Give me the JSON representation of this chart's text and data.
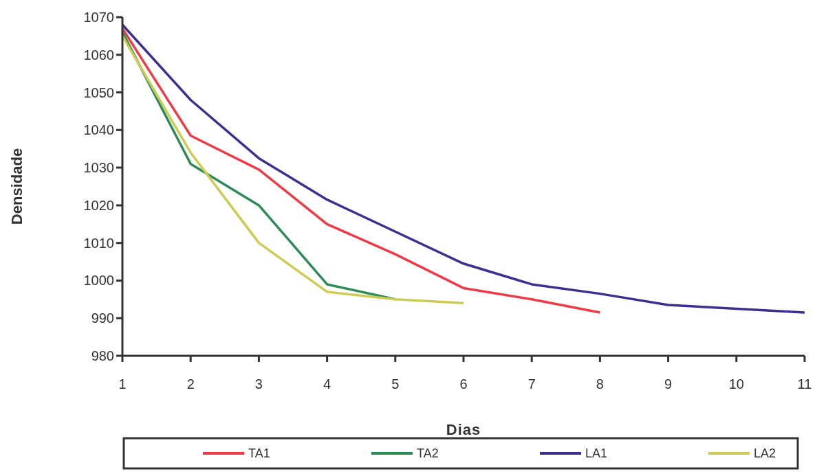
{
  "chart_data": {
    "type": "line",
    "xlabel": "Dias",
    "ylabel": "Densidade",
    "x": [
      1,
      2,
      3,
      4,
      5,
      6,
      7,
      8,
      9,
      10,
      11
    ],
    "xlim": [
      1,
      11
    ],
    "xticks": [
      1,
      2,
      3,
      4,
      5,
      6,
      7,
      8,
      9,
      10,
      11
    ],
    "ylim": [
      980,
      1070
    ],
    "yticks": [
      980,
      990,
      1000,
      1010,
      1020,
      1030,
      1040,
      1050,
      1060,
      1070
    ],
    "grid": false,
    "legend": "bottom",
    "marker": "none",
    "line_style": "solid",
    "series": [
      {
        "name": "TA1",
        "color": "#ee3b47",
        "values": [
          1067,
          1038.5,
          1029.5,
          1015,
          1007,
          998,
          995,
          991.5,
          null,
          null,
          null
        ]
      },
      {
        "name": "TA2",
        "color": "#2e8b57",
        "values": [
          1066,
          1031,
          1020,
          999,
          995,
          null,
          null,
          null,
          null,
          null,
          null
        ]
      },
      {
        "name": "LA1",
        "color": "#3d2f8f",
        "values": [
          1068,
          1048,
          1032.5,
          1021.5,
          1013,
          1004.5,
          999,
          996.5,
          993.5,
          992.5,
          991.5
        ]
      },
      {
        "name": "LA2",
        "color": "#cccc55",
        "values": [
          1065,
          1034,
          1010,
          997,
          995,
          994,
          null,
          null,
          null,
          null,
          null
        ]
      }
    ]
  }
}
